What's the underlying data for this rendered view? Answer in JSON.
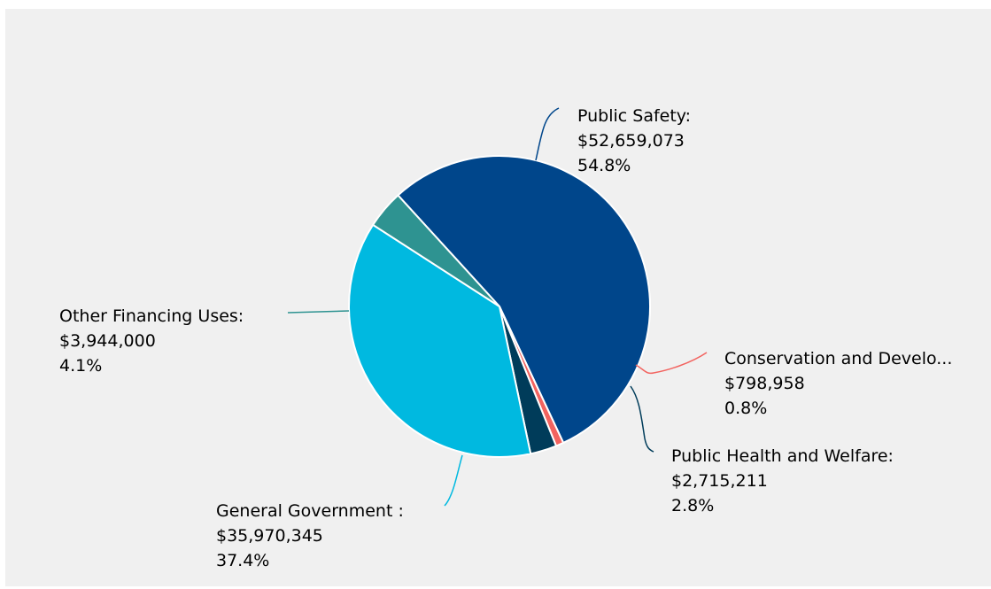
{
  "chart_data": {
    "type": "pie",
    "slices": [
      {
        "name": "Public Safety:",
        "amount": "$52,659,073",
        "percent": "54.8%",
        "value": 52659073,
        "color": "#00468b"
      },
      {
        "name": "Conservation and Develo...",
        "amount": "$798,958",
        "percent": "0.8%",
        "value": 798958,
        "color": "#f2635f"
      },
      {
        "name": "Public Health and Welfare:",
        "amount": "$2,715,211",
        "percent": "2.8%",
        "value": 2715211,
        "color": "#003c5a"
      },
      {
        "name": "General Government :",
        "amount": "$35,970,345",
        "percent": "37.4%",
        "value": 35970345,
        "color": "#00b9e0"
      },
      {
        "name": "Other Financing Uses:",
        "amount": "$3,944,000",
        "percent": "4.1%",
        "value": 3944000,
        "color": "#2e9391"
      }
    ]
  }
}
